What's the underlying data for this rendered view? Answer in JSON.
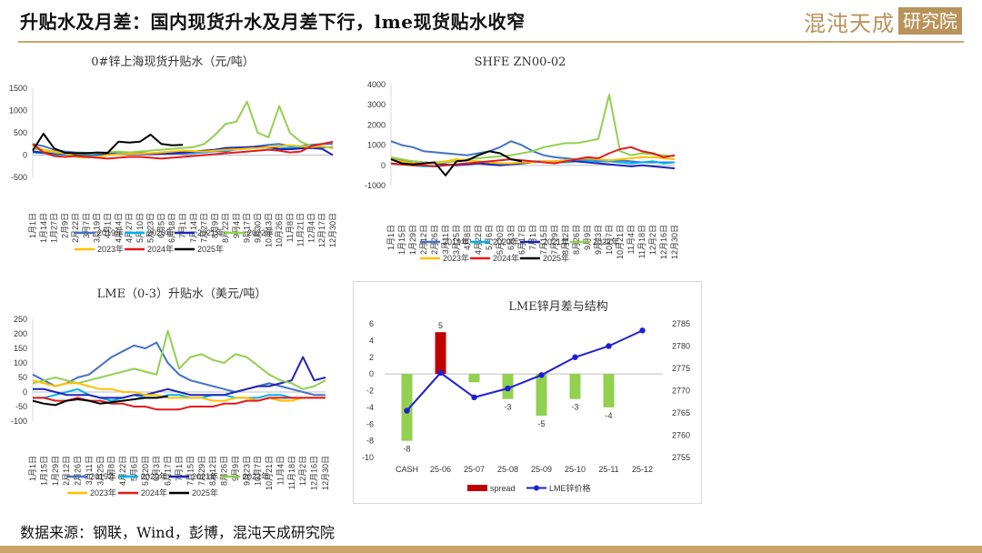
{
  "header": {
    "title": "升贴水及月差：国内现货升水及月差下行，lme现货贴水收窄",
    "logo_text": "混沌天成",
    "logo_box": "研究院"
  },
  "footer": {
    "source": "数据来源：钢联，Wind，彭博，混沌天成研究院"
  },
  "colors": {
    "gold": "#c9a56b",
    "s2019": "#4472c4",
    "s2020": "#00b0f0",
    "s2021": "#1f24b4",
    "s2022": "#92d050",
    "s2023": "#ffc000",
    "s2024": "#e31a1c",
    "s2025": "#000000"
  },
  "chart_data": [
    {
      "id": "shanghai",
      "type": "line",
      "title": "0#锌上海现货升贴水（元/吨）",
      "ylim": [
        -500,
        1500
      ],
      "yticks": [
        "1500",
        "1000",
        "500",
        "0",
        "-500"
      ],
      "xticks": [
        "1月1日",
        "1月14日",
        "1月27日",
        "2月9日",
        "2月22日",
        "3月7日",
        "3月19日",
        "4月1日",
        "4月14日",
        "4月27日",
        "5月10日",
        "5月23日",
        "6月5日",
        "6月18日",
        "7月1日",
        "7月14日",
        "7月27日",
        "8月9日",
        "8月22日",
        "9月4日",
        "9月17日",
        "9月30日",
        "10月13日",
        "10月26日",
        "11月8日",
        "11月21日",
        "12月4日",
        "12月17日",
        "12月30日"
      ],
      "legend": [
        "2019年",
        "2020年",
        "2021年",
        "2022年",
        "2023年",
        "2024年",
        "2025年"
      ],
      "series": [
        {
          "name": "2019年",
          "values": [
            250,
            200,
            120,
            80,
            60,
            50,
            40,
            30,
            50,
            60,
            40,
            40,
            30,
            30,
            30,
            40,
            60,
            90,
            80,
            130,
            160,
            200,
            230,
            250,
            200,
            200,
            230,
            250,
            250
          ]
        },
        {
          "name": "2020年",
          "values": [
            60,
            40,
            20,
            10,
            0,
            -10,
            0,
            20,
            40,
            30,
            20,
            40,
            60,
            80,
            70,
            60,
            60,
            90,
            110,
            130,
            150,
            170,
            170,
            150,
            170,
            180,
            190,
            170,
            180
          ]
        },
        {
          "name": "2021年",
          "values": [
            80,
            60,
            40,
            30,
            20,
            10,
            20,
            30,
            20,
            10,
            20,
            20,
            30,
            40,
            60,
            80,
            100,
            120,
            160,
            170,
            180,
            190,
            180,
            130,
            130,
            150,
            160,
            140,
            0
          ]
        },
        {
          "name": "2022年",
          "values": [
            150,
            100,
            60,
            40,
            30,
            20,
            40,
            60,
            80,
            60,
            80,
            100,
            120,
            140,
            160,
            180,
            250,
            450,
            700,
            750,
            1200,
            500,
            400,
            1100,
            500,
            300,
            200,
            250,
            300
          ]
        },
        {
          "name": "2023年",
          "values": [
            200,
            120,
            80,
            40,
            -40,
            -60,
            -40,
            0,
            20,
            20,
            30,
            40,
            60,
            80,
            100,
            90,
            80,
            100,
            120,
            130,
            150,
            160,
            180,
            200,
            220,
            200,
            180,
            200,
            150
          ]
        },
        {
          "name": "2024年",
          "values": [
            250,
            60,
            -20,
            -40,
            -20,
            -40,
            -60,
            -80,
            -60,
            -40,
            -40,
            -60,
            -80,
            -60,
            -40,
            -20,
            0,
            20,
            40,
            60,
            80,
            100,
            120,
            100,
            60,
            80,
            200,
            250,
            300
          ]
        },
        {
          "name": "2025年",
          "values": [
            100,
            480,
            150,
            50,
            40,
            40,
            60,
            50,
            300,
            280,
            300,
            460,
            250,
            220,
            230,
            null,
            null,
            null,
            null,
            null,
            null,
            null,
            null,
            null,
            null,
            null,
            null,
            null,
            null
          ]
        }
      ]
    },
    {
      "id": "shfe",
      "type": "line",
      "title": "SHFE ZN00-02",
      "ylim": [
        -1000,
        4000
      ],
      "yticks": [
        "4000",
        "3000",
        "2000",
        "1000",
        "0",
        "-1000"
      ],
      "xticks": [
        "1月1日",
        "1月15日",
        "1月29日",
        "2月12日",
        "2月26日",
        "3月11日",
        "3月25日",
        "4月8日",
        "4月22日",
        "5月6日",
        "5月20日",
        "6月3日",
        "6月17日",
        "7月1日",
        "7月15日",
        "7月29日",
        "8月12日",
        "8月26日",
        "9月9日",
        "9月23日",
        "10月7日",
        "10月21日",
        "11月4日",
        "11月18日",
        "12月2日",
        "12月16日",
        "12月30日"
      ],
      "legend": [
        "2019年",
        "2020年",
        "2021年",
        "2022年",
        "2023年",
        "2024年",
        "2025年"
      ],
      "series": [
        {
          "name": "2019年",
          "values": [
            1200,
            1000,
            900,
            700,
            650,
            600,
            550,
            500,
            600,
            700,
            900,
            1200,
            1000,
            700,
            500,
            400,
            350,
            300,
            250,
            200,
            200,
            250,
            200,
            150,
            150,
            150,
            150
          ]
        },
        {
          "name": "2020年",
          "values": [
            100,
            50,
            0,
            -50,
            -50,
            0,
            50,
            100,
            150,
            100,
            50,
            100,
            150,
            200,
            200,
            150,
            150,
            200,
            250,
            250,
            200,
            150,
            100,
            150,
            200,
            100,
            150
          ]
        },
        {
          "name": "2021年",
          "values": [
            300,
            250,
            200,
            150,
            100,
            50,
            0,
            50,
            100,
            50,
            0,
            50,
            100,
            150,
            200,
            200,
            250,
            200,
            150,
            100,
            50,
            0,
            -50,
            0,
            -50,
            -100,
            -150
          ]
        },
        {
          "name": "2022年",
          "values": [
            400,
            300,
            200,
            150,
            100,
            150,
            200,
            300,
            350,
            400,
            450,
            500,
            600,
            700,
            900,
            1000,
            1100,
            1100,
            1200,
            1300,
            3500,
            700,
            500,
            600,
            550,
            500,
            450
          ]
        },
        {
          "name": "2023年",
          "values": [
            300,
            200,
            100,
            100,
            150,
            200,
            300,
            250,
            200,
            150,
            100,
            100,
            150,
            150,
            200,
            200,
            250,
            300,
            350,
            300,
            250,
            300,
            350,
            400,
            400,
            350,
            300
          ]
        },
        {
          "name": "2024年",
          "values": [
            100,
            50,
            0,
            0,
            -50,
            0,
            50,
            100,
            150,
            200,
            250,
            300,
            250,
            200,
            150,
            100,
            200,
            300,
            400,
            350,
            600,
            800,
            900,
            700,
            600,
            400,
            500
          ]
        },
        {
          "name": "2025年",
          "values": [
            300,
            100,
            50,
            100,
            150,
            -500,
            200,
            250,
            500,
            700,
            600,
            300,
            200,
            null,
            null,
            null,
            null,
            null,
            null,
            null,
            null,
            null,
            null,
            null,
            null,
            null,
            null
          ]
        }
      ]
    },
    {
      "id": "lme",
      "type": "line",
      "title": "LME（0-3）升贴水（美元/吨）",
      "ylim": [
        -100,
        250
      ],
      "yticks": [
        "250",
        "200",
        "150",
        "100",
        "50",
        "0",
        "-50",
        "-100"
      ],
      "xticks": [
        "1月1日",
        "1月15日",
        "1月29日",
        "2月12日",
        "2月26日",
        "3月11日",
        "3月25日",
        "4月8日",
        "4月22日",
        "5月6日",
        "5月20日",
        "6月3日",
        "6月17日",
        "7月1日",
        "7月15日",
        "7月29日",
        "8月12日",
        "8月26日",
        "9月9日",
        "9月23日",
        "10月7日",
        "10月21日",
        "11月4日",
        "11月18日",
        "12月2日",
        "12月16日",
        "12月30日"
      ],
      "legend": [
        "2019年",
        "2020年",
        "2021年",
        "2022年",
        "2023年",
        "2024年",
        "2025年"
      ],
      "series": [
        {
          "name": "2019年",
          "values": [
            60,
            40,
            20,
            30,
            50,
            60,
            90,
            120,
            140,
            160,
            150,
            170,
            100,
            60,
            40,
            30,
            20,
            10,
            0,
            10,
            20,
            30,
            20,
            10,
            0,
            -10,
            -10
          ]
        },
        {
          "name": "2020年",
          "values": [
            -20,
            -20,
            -10,
            0,
            10,
            -10,
            -20,
            -30,
            -20,
            -10,
            -20,
            -20,
            -10,
            -10,
            -20,
            -20,
            -10,
            -10,
            -20,
            -20,
            -20,
            -10,
            -10,
            -20,
            -20,
            -20,
            -20
          ]
        },
        {
          "name": "2021年",
          "values": [
            10,
            10,
            0,
            -10,
            -10,
            -10,
            -20,
            -20,
            -20,
            -10,
            -10,
            0,
            10,
            0,
            -10,
            -10,
            -10,
            -10,
            0,
            10,
            20,
            20,
            30,
            40,
            120,
            40,
            50
          ]
        },
        {
          "name": "2022年",
          "values": [
            30,
            40,
            50,
            40,
            30,
            40,
            50,
            60,
            70,
            80,
            70,
            60,
            210,
            80,
            120,
            130,
            110,
            100,
            130,
            120,
            90,
            60,
            40,
            30,
            10,
            20,
            40
          ]
        },
        {
          "name": "2023年",
          "values": [
            40,
            30,
            20,
            30,
            30,
            20,
            10,
            10,
            0,
            0,
            -10,
            -10,
            -20,
            -20,
            -20,
            -20,
            -30,
            -30,
            -20,
            -20,
            -30,
            -20,
            -30,
            -30,
            -20,
            -20,
            -20
          ]
        },
        {
          "name": "2024年",
          "values": [
            -20,
            -20,
            -30,
            -30,
            -20,
            -30,
            -30,
            -40,
            -40,
            -50,
            -50,
            -60,
            -60,
            -60,
            -50,
            -50,
            -50,
            -40,
            -40,
            -30,
            -30,
            -20,
            -20,
            -20,
            -20,
            -20,
            -20
          ]
        },
        {
          "name": "2025年",
          "values": [
            -30,
            -40,
            -45,
            -30,
            -25,
            -30,
            -40,
            -35,
            -30,
            -25,
            -20,
            -20,
            -15,
            null,
            null,
            null,
            null,
            null,
            null,
            null,
            null,
            null,
            null,
            null,
            null,
            null,
            null
          ]
        }
      ]
    },
    {
      "id": "lme-spread",
      "type": "bar",
      "title": "LME锌月差与结构",
      "categories": [
        "CASH",
        "25-06",
        "25-07",
        "25-08",
        "25-09",
        "25-10",
        "25-11",
        "25-12"
      ],
      "spread_values": [
        -8,
        5,
        -1,
        -3,
        -5,
        -3,
        -4,
        null
      ],
      "spread_labels": [
        "-8",
        "5",
        "",
        "-3",
        "-5",
        "-3",
        "-4",
        ""
      ],
      "price_values": [
        2765.5,
        2774,
        2768.5,
        2770.5,
        2773.5,
        2777.5,
        2780,
        2783.5
      ],
      "ylim_left": [
        -10,
        6
      ],
      "yticks_left": [
        "6",
        "4",
        "2",
        "0",
        "-2",
        "-4",
        "-6",
        "-8",
        "-10"
      ],
      "ylim_right": [
        2755,
        2785
      ],
      "yticks_right": [
        "2785",
        "2780",
        "2775",
        "2770",
        "2765",
        "2760",
        "2755"
      ],
      "legend": [
        "spread",
        "LME锌价格"
      ],
      "bar_colors": {
        "positive": "#c00000",
        "negative": "#92d050"
      },
      "line_color": "#1f1fd6"
    }
  ]
}
